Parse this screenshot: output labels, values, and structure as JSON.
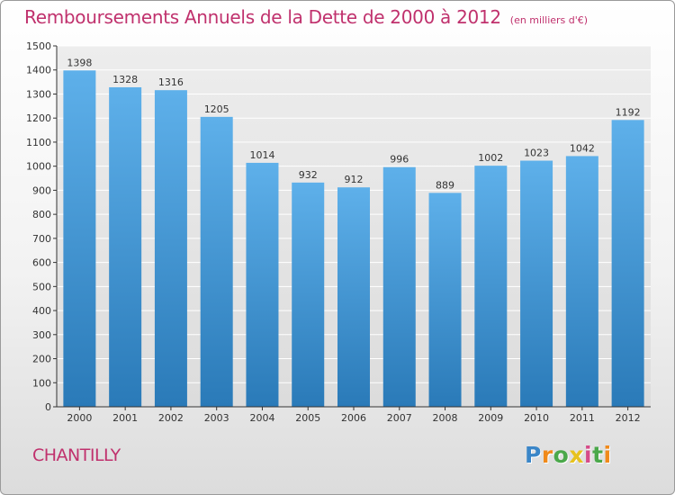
{
  "header": {
    "title": "Remboursements Annuels de la Dette de 2000 à 2012",
    "unit": "(en milliers d'€)"
  },
  "footer": {
    "commune": "CHANTILLY",
    "logo": "Proxiti"
  },
  "colors": {
    "title": "#c0316d",
    "bar_top": "#5eb0ea",
    "bar_bottom": "#2a7ab8",
    "grid": "#ffffff"
  },
  "chart_data": {
    "type": "bar",
    "categories": [
      "2000",
      "2001",
      "2002",
      "2003",
      "2004",
      "2005",
      "2006",
      "2007",
      "2008",
      "2009",
      "2010",
      "2011",
      "2012"
    ],
    "values": [
      1398,
      1328,
      1316,
      1205,
      1014,
      932,
      912,
      996,
      889,
      1002,
      1023,
      1042,
      1192
    ],
    "data_labels": [
      "1398",
      "1328",
      "1316",
      "1205",
      "1014",
      "932",
      "912",
      "996",
      "889",
      "1002",
      "1023",
      "1042",
      "1192"
    ],
    "y_ticks": [
      0,
      100,
      200,
      300,
      400,
      500,
      600,
      700,
      800,
      900,
      1000,
      1100,
      1200,
      1300,
      1400,
      1500
    ],
    "ylim": [
      0,
      1500
    ],
    "grid": true,
    "legend": "none"
  }
}
